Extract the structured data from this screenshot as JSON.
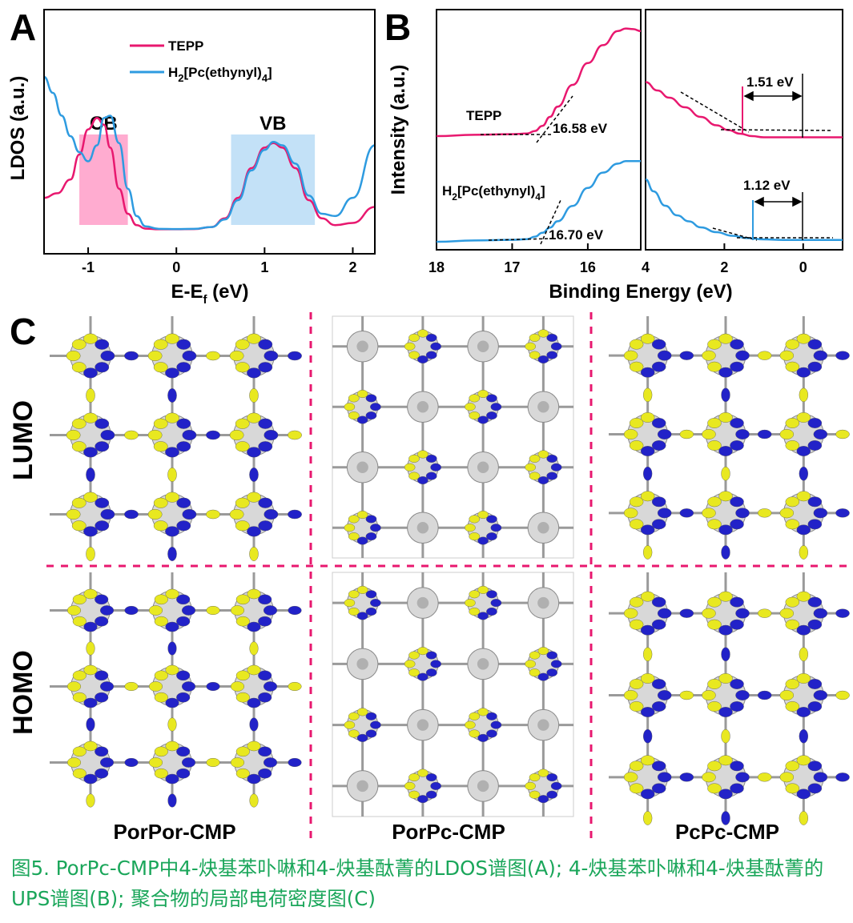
{
  "panel_letters": {
    "a": "A",
    "b": "B",
    "c": "C"
  },
  "chart_data": [
    {
      "type": "line",
      "xlabel": "E-E",
      "xlabel_sub": "f",
      "xlabel_unit": "(eV)",
      "ylabel": "LDOS (a.u.)",
      "xlim": [
        -1.5,
        2.25
      ],
      "ylim": [
        0,
        1
      ],
      "xticks": [
        -1,
        0,
        1,
        2
      ],
      "bands": [
        {
          "label": "CB",
          "x": [
            -1.1,
            -0.55
          ],
          "color": "#ff9ec8"
        },
        {
          "label": "VB",
          "x": [
            0.62,
            1.57
          ],
          "color": "#b8dcf6"
        }
      ],
      "legend_position": "top-center",
      "series": [
        {
          "name": "TEPP",
          "color": "#e8186f",
          "x": [
            -1.5,
            -1.35,
            -1.2,
            -1.1,
            -1.0,
            -0.9,
            -0.82,
            -0.75,
            -0.65,
            -0.55,
            -0.45,
            -0.35,
            -0.2,
            0,
            0.2,
            0.4,
            0.55,
            0.7,
            0.85,
            1.0,
            1.1,
            1.2,
            1.35,
            1.5,
            1.65,
            1.8,
            2.0,
            2.25
          ],
          "y": [
            0.14,
            0.16,
            0.22,
            0.33,
            0.44,
            0.49,
            0.46,
            0.36,
            0.18,
            0.07,
            0.02,
            0.005,
            0.002,
            0.002,
            0.003,
            0.012,
            0.05,
            0.14,
            0.27,
            0.36,
            0.38,
            0.36,
            0.27,
            0.13,
            0.05,
            0.02,
            0.03,
            0.1
          ]
        },
        {
          "name": "H2[Pc(ethynyl)4]",
          "name_main": "H",
          "name_sub1": "2",
          "name_mid": "[Pc(ethynyl)",
          "name_sub2": "4",
          "name_end": "]",
          "color": "#2e9be0",
          "x": [
            -1.5,
            -1.4,
            -1.3,
            -1.2,
            -1.1,
            -1.0,
            -0.9,
            -0.82,
            -0.75,
            -0.65,
            -0.55,
            -0.45,
            -0.35,
            -0.2,
            0,
            0.2,
            0.4,
            0.55,
            0.7,
            0.85,
            1.0,
            1.1,
            1.2,
            1.35,
            1.5,
            1.65,
            1.8,
            2.0,
            2.25
          ],
          "y": [
            0.67,
            0.6,
            0.5,
            0.41,
            0.34,
            0.3,
            0.37,
            0.49,
            0.5,
            0.38,
            0.18,
            0.06,
            0.015,
            0.004,
            0.003,
            0.004,
            0.012,
            0.045,
            0.13,
            0.26,
            0.35,
            0.385,
            0.37,
            0.29,
            0.15,
            0.07,
            0.06,
            0.14,
            0.37
          ]
        }
      ]
    },
    {
      "type": "line",
      "xlabel": "Binding Energy (eV)",
      "ylabel": "Intensity (a.u.)",
      "subplots": [
        {
          "xlim": [
            18,
            15.3
          ],
          "xticks": [
            18,
            17,
            16
          ],
          "annotations": [
            "16.58 eV",
            "16.70 eV"
          ],
          "series": [
            {
              "name": "TEPP",
              "color": "#e8186f",
              "x": [
                18,
                17.5,
                17,
                16.8,
                16.7,
                16.6,
                16.5,
                16.4,
                16.2,
                16.0,
                15.8,
                15.6,
                15.5,
                15.4,
                15.3
              ],
              "y": [
                0.05,
                0.06,
                0.065,
                0.07,
                0.09,
                0.13,
                0.2,
                0.28,
                0.45,
                0.62,
                0.76,
                0.87,
                0.89,
                0.885,
                0.87
              ]
            },
            {
              "name": "H2[Pc(ethynyl)4]",
              "color": "#2e9be0",
              "x": [
                18,
                17.5,
                17,
                16.8,
                16.7,
                16.6,
                16.5,
                16.4,
                16.2,
                16.0,
                15.8,
                15.6,
                15.5,
                15.4,
                15.3
              ],
              "y": [
                0.0,
                0.01,
                0.015,
                0.02,
                0.04,
                0.07,
                0.11,
                0.16,
                0.28,
                0.42,
                0.54,
                0.61,
                0.63,
                0.63,
                0.63
              ]
            }
          ]
        },
        {
          "xlim": [
            4,
            -1
          ],
          "xticks": [
            4,
            2,
            0
          ],
          "annotations": [
            "1.51 eV",
            "1.12 eV"
          ],
          "series": [
            {
              "name": "TEPP",
              "color": "#e8186f",
              "x": [
                4,
                3.7,
                3.4,
                3.0,
                2.6,
                2.2,
                1.9,
                1.6,
                1.3,
                1.0,
                0.5,
                0,
                -0.5,
                -1
              ],
              "y": [
                0.95,
                0.88,
                0.82,
                0.74,
                0.66,
                0.59,
                0.55,
                0.52,
                0.5,
                0.49,
                0.49,
                0.49,
                0.49,
                0.49
              ]
            },
            {
              "name": "H2[Pc(ethynyl)4]",
              "color": "#2e9be0",
              "x": [
                4,
                3.8,
                3.5,
                3.2,
                2.9,
                2.6,
                2.2,
                1.8,
                1.4,
                1.0,
                0.5,
                0,
                -0.5,
                -1
              ],
              "y": [
                0.52,
                0.42,
                0.3,
                0.22,
                0.17,
                0.12,
                0.08,
                0.05,
                0.03,
                0.02,
                0.015,
                0.015,
                0.015,
                0.015
              ]
            }
          ]
        }
      ]
    }
  ],
  "panel_c": {
    "rows": [
      "LUMO",
      "HOMO"
    ],
    "columns": [
      "PorPor-CMP",
      "PorPc-CMP",
      "PcPc-CMP"
    ]
  },
  "caption": "图5. PorPc-CMP中4-炔基苯卟啉和4-炔基酞菁的LDOS谱图(A); 4-炔基苯卟啉和4-炔基酞菁的UPS谱图(B); 聚合物的局部电荷密度图(C)",
  "colors": {
    "pink": "#e8186f",
    "blue": "#2e9be0",
    "orbital_yellow": "#e8e820",
    "orbital_blue": "#2222c8",
    "caption": "#1aa65a"
  }
}
